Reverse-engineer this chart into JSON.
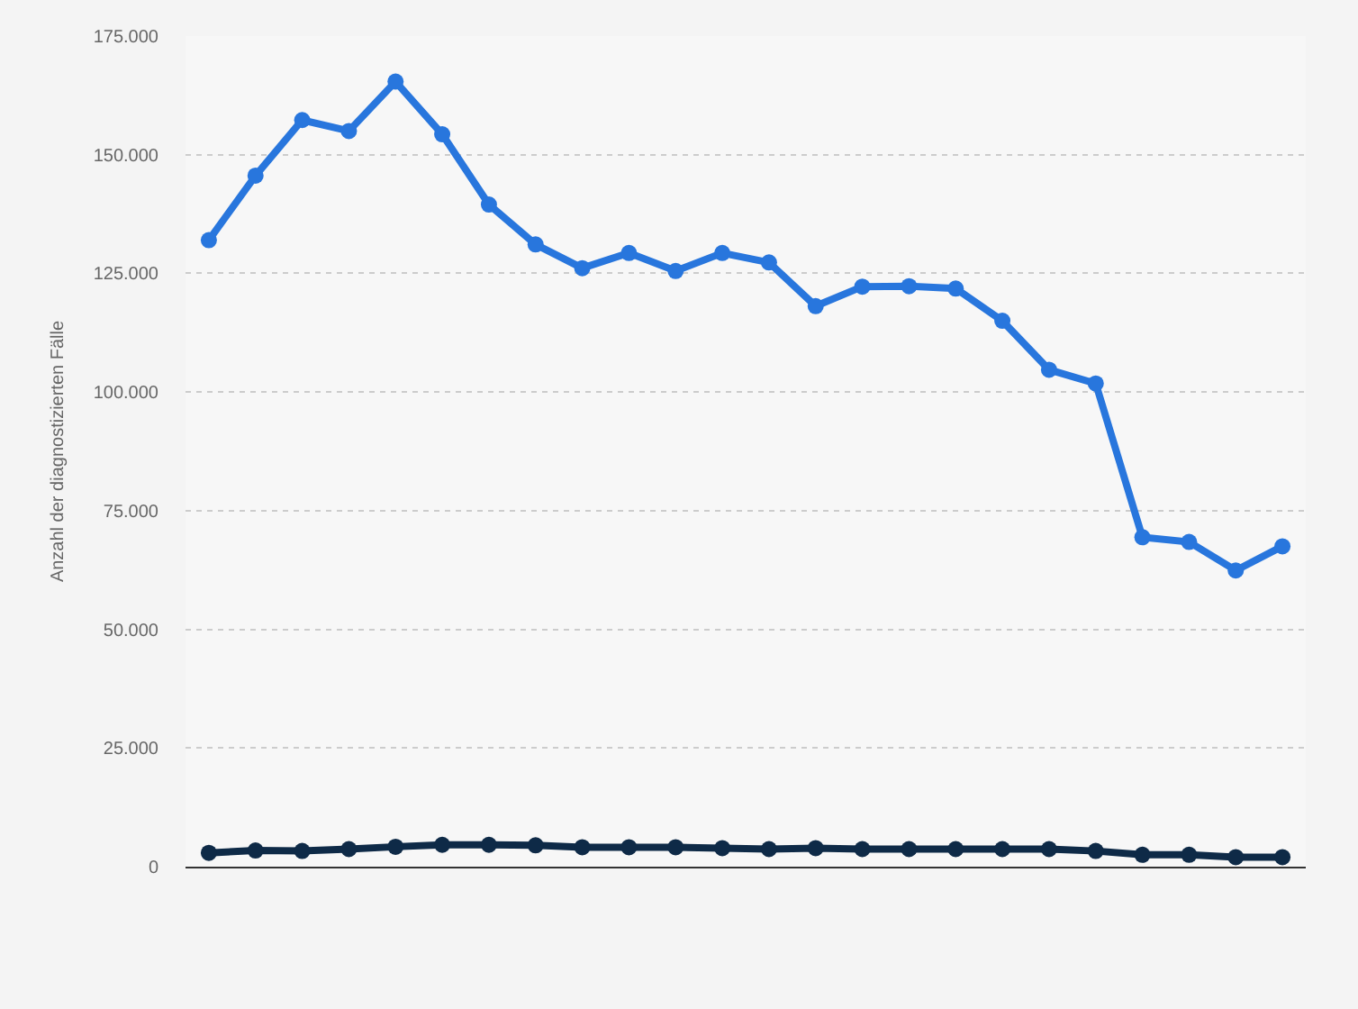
{
  "chart_data": {
    "type": "line",
    "ylabel": "Anzahl der diagnostizierten Fälle",
    "categories": [
      null,
      null,
      null,
      null,
      null,
      null,
      null,
      null,
      null,
      null,
      null,
      null,
      null,
      null,
      null,
      null,
      null,
      null,
      null,
      null,
      null,
      null,
      null,
      null
    ],
    "series": [
      {
        "color": "#2876dd",
        "values": [
          132000,
          145600,
          157300,
          155000,
          165400,
          154300,
          139500,
          131100,
          126100,
          129300,
          125500,
          129300,
          127300,
          118100,
          122200,
          122300,
          121800,
          115000,
          104700,
          101800,
          69400,
          68400,
          62400,
          67500
        ]
      },
      {
        "color": "#0e2a47",
        "values": [
          2900,
          3400,
          3300,
          3700,
          4200,
          4600,
          4600,
          4500,
          4100,
          4100,
          4100,
          3900,
          3700,
          3900,
          3700,
          3700,
          3700,
          3700,
          3700,
          3300,
          2500,
          2500,
          2000,
          2000
        ]
      }
    ],
    "ylim": [
      0,
      175000
    ],
    "yticks": [
      {
        "value": 0,
        "label": "0"
      },
      {
        "value": 25000,
        "label": "25.000"
      },
      {
        "value": 50000,
        "label": "50.000"
      },
      {
        "value": 75000,
        "label": "75.000"
      },
      {
        "value": 100000,
        "label": "100.000"
      },
      {
        "value": 125000,
        "label": "125.000"
      },
      {
        "value": 150000,
        "label": "150.000"
      },
      {
        "value": 175000,
        "label": "175.000"
      }
    ],
    "grid": "y",
    "tick_labels": "y",
    "marker": "circle",
    "line_style": "solid"
  }
}
